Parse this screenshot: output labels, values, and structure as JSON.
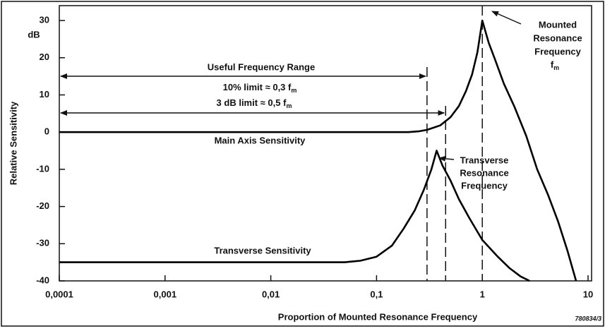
{
  "chart_data": {
    "type": "line",
    "xlabel": "Proportion of Mounted Resonance Frequency",
    "ylabel": "Relative Sensitivity",
    "yunit": "dB",
    "xscale": "log",
    "xlim": [
      0.0001,
      10
    ],
    "ylim": [
      -40,
      34
    ],
    "xticks": [
      {
        "value": 0.0001,
        "label": "0,0001"
      },
      {
        "value": 0.001,
        "label": "0,001"
      },
      {
        "value": 0.01,
        "label": "0,01"
      },
      {
        "value": 0.1,
        "label": "0,1"
      },
      1,
      10
    ],
    "yticks": [
      30,
      20,
      10,
      0,
      -10,
      -20,
      -30,
      -40
    ],
    "series": [
      {
        "name": "Main Axis Sensitivity",
        "color": "#000000",
        "x": [
          0.0001,
          0.2,
          0.25,
          0.3,
          0.4,
          0.5,
          0.6,
          0.7,
          0.8,
          0.9,
          1,
          1.15,
          1.3,
          1.6,
          2,
          2.6,
          3.3,
          4.2,
          5.2,
          6.4,
          7.7
        ],
        "values": [
          0,
          0,
          0.2,
          0.6,
          1.8,
          4,
          7,
          11,
          15.5,
          21.5,
          30,
          24,
          20,
          13,
          7,
          -1,
          -10,
          -17,
          -24,
          -32,
          -40
        ]
      },
      {
        "name": "Transverse Sensitivity",
        "color": "#000000",
        "x": [
          0.0001,
          0.05,
          0.07,
          0.1,
          0.14,
          0.18,
          0.23,
          0.28,
          0.33,
          0.37,
          0.42,
          0.5,
          0.6,
          0.75,
          1,
          1.4,
          1.8,
          2.3,
          2.8
        ],
        "values": [
          -35,
          -35,
          -34.6,
          -33.5,
          -30.5,
          -26,
          -21,
          -15.5,
          -10,
          -5,
          -9,
          -13,
          -18,
          -23,
          -29,
          -33.5,
          -36.5,
          -38.8,
          -40
        ]
      }
    ],
    "reference_lines": [
      0.3,
      0.45,
      1
    ],
    "annotations": {
      "useful_range": "Useful Frequency Range",
      "limit_10": {
        "text": "10% limit ≈ 0,3 f",
        "sub": "m"
      },
      "limit_3db": {
        "text": "3 dB limit ≈ 0,5 f",
        "sub": "m"
      },
      "transverse_resonance": [
        "Transverse",
        "Resonance",
        "Frequency"
      ],
      "mounted_resonance": [
        "Mounted",
        "Resonance",
        "Frequency"
      ],
      "mounted_symbol": {
        "text": "f",
        "sub": "m"
      }
    },
    "figure_code": "780834/3"
  }
}
